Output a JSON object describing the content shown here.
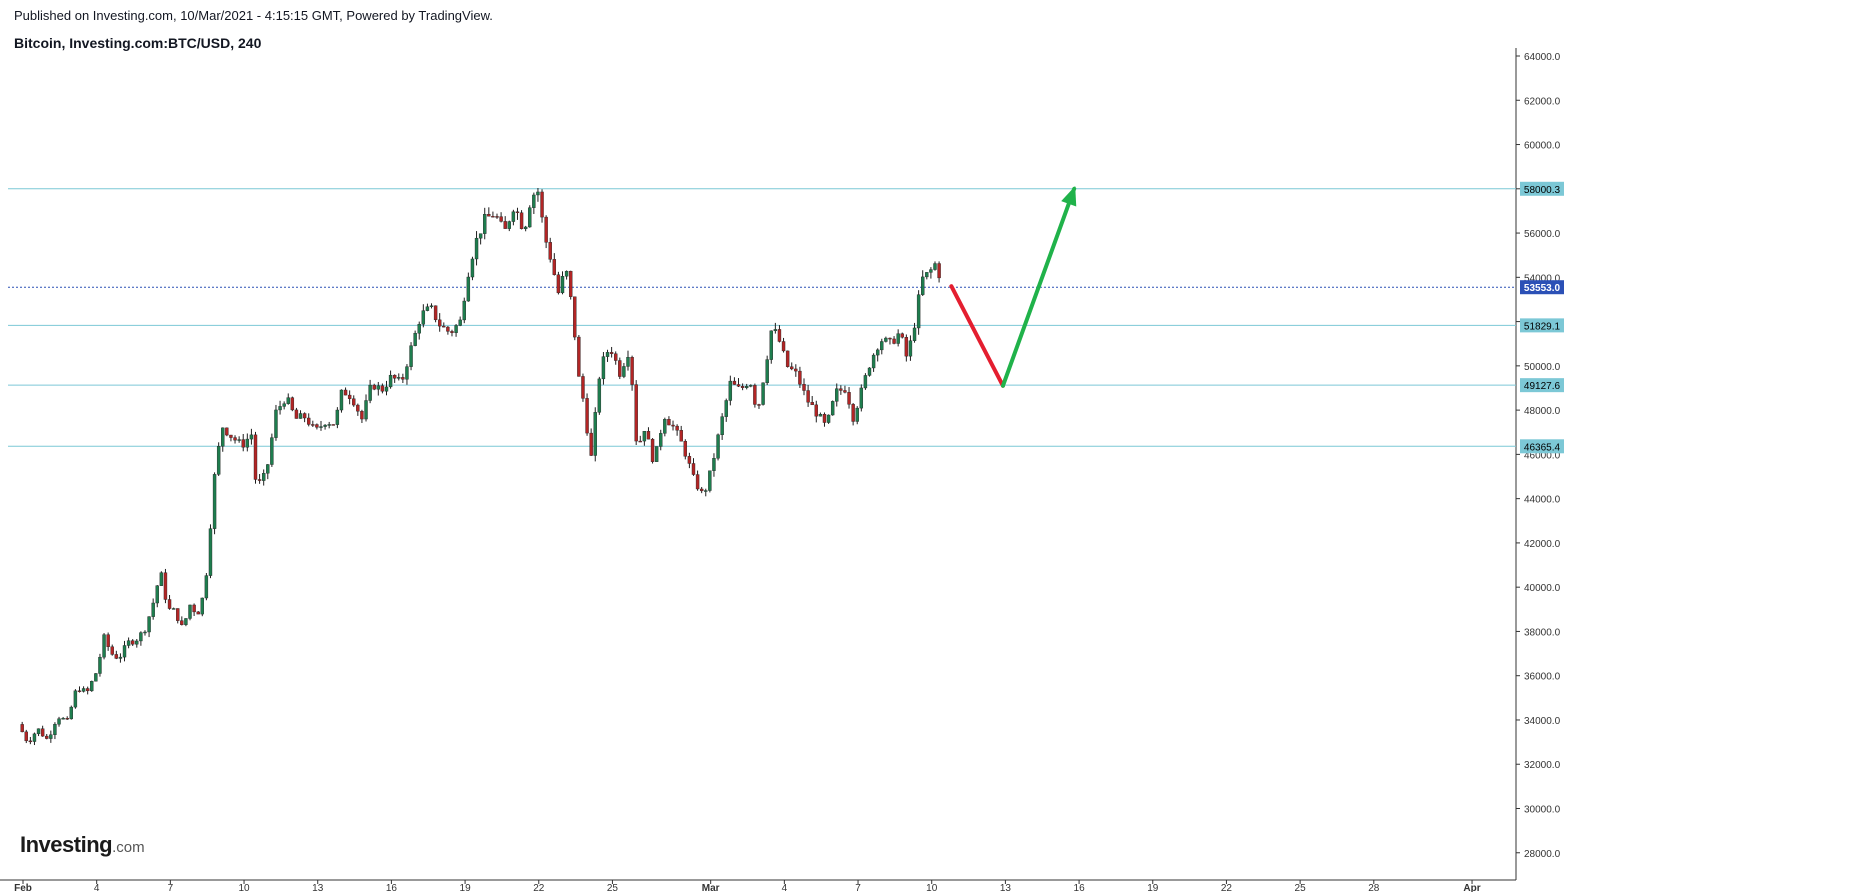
{
  "header": {
    "published": "Published on Investing.com, 10/Mar/2021 - 4:15:15 GMT, Powered by TradingView.",
    "symbol": "Bitcoin, Investing.com:BTC/USD, 240"
  },
  "logo": {
    "brand": "Investing",
    "suffix": ".com"
  },
  "colors": {
    "up": "#1e7d4e",
    "down": "#b22525",
    "wick": "#1e1e1e",
    "level_line": "#7cc8d6",
    "level_tag": "#7cc8d6",
    "price_line": "#2b50b6",
    "price_tag": "#2b50b6",
    "arrow_down": "#e41e2f",
    "arrow_up": "#20b24a"
  },
  "chart_data": {
    "type": "candlestick",
    "title": "Bitcoin, Investing.com:BTC/USD, 240",
    "timeframe": "240",
    "y_range": [
      28000,
      64600
    ],
    "y_ticks": [
      28000,
      30000,
      32000,
      34000,
      36000,
      38000,
      40000,
      42000,
      44000,
      46000,
      48000,
      50000,
      52000,
      54000,
      56000,
      58000,
      60000,
      62000,
      64000
    ],
    "y_tick_labels": [
      "28000.0",
      "30000.0",
      "32000.0",
      "34000.0",
      "36000.0",
      "38000.0",
      "40000.0",
      "42000.0",
      "44000.0",
      "46000.0",
      "48000.0",
      "50000.0",
      "52000.0",
      "54000.0",
      "56000.0",
      "58000.0",
      "60000.0",
      "62000.0",
      "64000.0"
    ],
    "x_ticks": [
      {
        "label": "Feb",
        "day": 1,
        "bold": true
      },
      {
        "label": "4",
        "day": 4
      },
      {
        "label": "7",
        "day": 7
      },
      {
        "label": "10",
        "day": 10
      },
      {
        "label": "13",
        "day": 13
      },
      {
        "label": "16",
        "day": 16
      },
      {
        "label": "19",
        "day": 19
      },
      {
        "label": "22",
        "day": 22
      },
      {
        "label": "25",
        "day": 25
      },
      {
        "label": "Mar",
        "day": 29,
        "bold": true
      },
      {
        "label": "4",
        "day": 32
      },
      {
        "label": "7",
        "day": 35
      },
      {
        "label": "10",
        "day": 38
      },
      {
        "label": "13",
        "day": 41
      },
      {
        "label": "16",
        "day": 44
      },
      {
        "label": "19",
        "day": 47
      },
      {
        "label": "22",
        "day": 50
      },
      {
        "label": "25",
        "day": 53
      },
      {
        "label": "28",
        "day": 56
      },
      {
        "label": "Apr",
        "day": 60,
        "bold": true
      }
    ],
    "close_path": [
      [
        0.8,
        33800
      ],
      [
        1.2,
        33000
      ],
      [
        1.6,
        33600
      ],
      [
        2.0,
        33100
      ],
      [
        2.4,
        34200
      ],
      [
        2.8,
        33900
      ],
      [
        3.2,
        35500
      ],
      [
        3.6,
        35200
      ],
      [
        4.0,
        36200
      ],
      [
        4.3,
        37700
      ],
      [
        4.6,
        37000
      ],
      [
        4.9,
        36800
      ],
      [
        5.3,
        37500
      ],
      [
        5.7,
        37700
      ],
      [
        6.0,
        38200
      ],
      [
        6.3,
        39300
      ],
      [
        6.6,
        40700
      ],
      [
        6.9,
        39000
      ],
      [
        7.2,
        38900
      ],
      [
        7.5,
        38100
      ],
      [
        7.8,
        39200
      ],
      [
        8.1,
        38800
      ],
      [
        8.4,
        39800
      ],
      [
        8.8,
        45000
      ],
      [
        9.1,
        47300
      ],
      [
        9.5,
        46800
      ],
      [
        9.9,
        46400
      ],
      [
        10.3,
        46900
      ],
      [
        10.5,
        44500
      ],
      [
        10.9,
        45100
      ],
      [
        11.3,
        47900
      ],
      [
        11.7,
        48600
      ],
      [
        12.1,
        47600
      ],
      [
        12.5,
        47700
      ],
      [
        12.9,
        47000
      ],
      [
        13.3,
        47500
      ],
      [
        13.7,
        47400
      ],
      [
        14.0,
        48900
      ],
      [
        14.4,
        48600
      ],
      [
        14.8,
        47600
      ],
      [
        15.2,
        49200
      ],
      [
        15.6,
        48900
      ],
      [
        16.0,
        49500
      ],
      [
        16.4,
        49200
      ],
      [
        16.8,
        50800
      ],
      [
        17.2,
        52300
      ],
      [
        17.6,
        52600
      ],
      [
        18.0,
        51800
      ],
      [
        18.4,
        51500
      ],
      [
        18.8,
        52000
      ],
      [
        19.1,
        54100
      ],
      [
        19.4,
        55500
      ],
      [
        19.8,
        56600
      ],
      [
        20.2,
        56900
      ],
      [
        20.6,
        56000
      ],
      [
        21.0,
        57300
      ],
      [
        21.4,
        56100
      ],
      [
        21.7,
        57700
      ],
      [
        22.0,
        57900
      ],
      [
        22.2,
        56000
      ],
      [
        22.5,
        54800
      ],
      [
        22.8,
        53300
      ],
      [
        23.1,
        54400
      ],
      [
        23.4,
        52300
      ],
      [
        23.6,
        49600
      ],
      [
        23.9,
        48000
      ],
      [
        24.1,
        45500
      ],
      [
        24.5,
        49900
      ],
      [
        24.9,
        50900
      ],
      [
        25.3,
        49700
      ],
      [
        25.7,
        50800
      ],
      [
        26.0,
        46200
      ],
      [
        26.3,
        47200
      ],
      [
        26.7,
        45600
      ],
      [
        27.1,
        47800
      ],
      [
        27.5,
        47200
      ],
      [
        27.9,
        46300
      ],
      [
        28.3,
        44900
      ],
      [
        28.7,
        44100
      ],
      [
        29.0,
        45200
      ],
      [
        29.4,
        47300
      ],
      [
        29.8,
        49200
      ],
      [
        30.2,
        48900
      ],
      [
        30.6,
        49400
      ],
      [
        30.9,
        47900
      ],
      [
        31.2,
        49800
      ],
      [
        31.5,
        51800
      ],
      [
        31.8,
        51100
      ],
      [
        32.1,
        50000
      ],
      [
        32.5,
        49600
      ],
      [
        32.9,
        48500
      ],
      [
        33.3,
        47900
      ],
      [
        33.7,
        47200
      ],
      [
        34.1,
        48800
      ],
      [
        34.5,
        49000
      ],
      [
        34.8,
        47700
      ],
      [
        35.1,
        48700
      ],
      [
        35.5,
        50200
      ],
      [
        35.9,
        51200
      ],
      [
        36.3,
        51000
      ],
      [
        36.7,
        51500
      ],
      [
        37.0,
        50300
      ],
      [
        37.3,
        51900
      ],
      [
        37.6,
        53900
      ],
      [
        37.9,
        54200
      ],
      [
        38.2,
        54700
      ],
      [
        38.4,
        53600
      ]
    ],
    "horizontal_levels": [
      {
        "value": 58000.3,
        "label": "58000.3"
      },
      {
        "value": 51829.1,
        "label": "51829.1"
      },
      {
        "value": 49127.6,
        "label": "49127.6"
      },
      {
        "value": 46365.4,
        "label": "46365.4"
      }
    ],
    "last_price": {
      "value": 53553.0,
      "label": "53553.0"
    },
    "projection": [
      {
        "from": {
          "day": 38.8,
          "price": 53600
        },
        "to": {
          "day": 40.9,
          "price": 49100
        },
        "direction": "down"
      },
      {
        "from": {
          "day": 40.9,
          "price": 49100
        },
        "to": {
          "day": 43.8,
          "price": 58000
        },
        "direction": "up"
      }
    ],
    "grid": false,
    "legend": "none"
  }
}
